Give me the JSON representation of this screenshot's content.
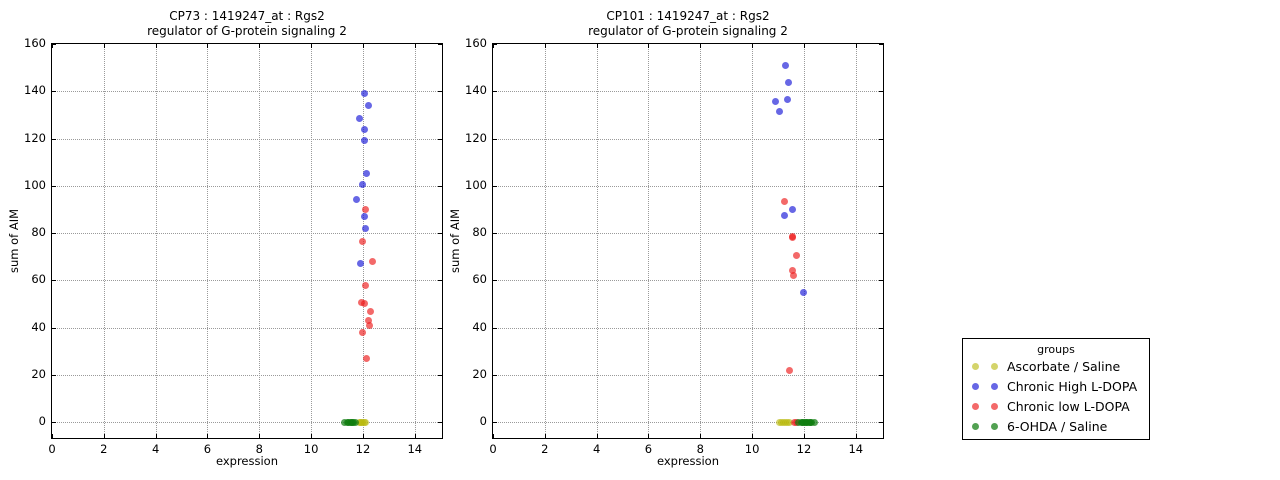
{
  "colors": {
    "ascorbate": "rgba(186,186,16,0.62)",
    "chronic_high": "rgba(25,25,215,0.66)",
    "chronic_low": "rgba(237,28,28,0.66)",
    "ohda": "rgba(15,125,15,0.72)",
    "grid": "#9a9a9a",
    "axis": "#000000"
  },
  "legend": {
    "title": "groups",
    "entries": [
      {
        "label": "Ascorbate / Saline",
        "group": "ascorbate"
      },
      {
        "label": "Chronic High L-DOPA",
        "group": "chronic_high"
      },
      {
        "label": "Chronic low L-DOPA",
        "group": "chronic_low"
      },
      {
        "label": "6-OHDA / Saline",
        "group": "ohda"
      }
    ]
  },
  "chart_data": [
    {
      "type": "scatter",
      "title_line1": "CP73 : 1419247_at : Rgs2",
      "title_line2": "regulator of G-protein signaling 2",
      "xlabel": "expression",
      "ylabel": "sum of AIM",
      "xlim": [
        0,
        15.05
      ],
      "ylim": [
        -6.7,
        160
      ],
      "xticks": [
        0,
        2,
        4,
        6,
        8,
        10,
        12,
        14
      ],
      "yticks": [
        0,
        20,
        40,
        60,
        80,
        100,
        120,
        140,
        160
      ],
      "grid": true,
      "legend_position": "outside-right",
      "series": [
        {
          "name": "Ascorbate / Saline",
          "group": "ascorbate",
          "points": [
            [
              11.85,
              0
            ],
            [
              11.9,
              0
            ],
            [
              11.95,
              0
            ],
            [
              12.0,
              0
            ],
            [
              12.05,
              0
            ],
            [
              12.1,
              0
            ]
          ]
        },
        {
          "name": "Chronic High L-DOPA",
          "group": "chronic_high",
          "points": [
            [
              12.05,
              139
            ],
            [
              12.2,
              134
            ],
            [
              11.85,
              128.5
            ],
            [
              12.05,
              124
            ],
            [
              12.05,
              119
            ],
            [
              12.15,
              105
            ],
            [
              12.0,
              100.5
            ],
            [
              11.75,
              94
            ],
            [
              12.05,
              87
            ],
            [
              12.1,
              82
            ],
            [
              11.9,
              67
            ]
          ]
        },
        {
          "name": "Chronic low L-DOPA",
          "group": "chronic_low",
          "points": [
            [
              12.1,
              90
            ],
            [
              12.0,
              76.5
            ],
            [
              12.35,
              68
            ],
            [
              12.1,
              58
            ],
            [
              11.95,
              50.5
            ],
            [
              12.05,
              50
            ],
            [
              12.3,
              47
            ],
            [
              12.2,
              43
            ],
            [
              12.25,
              41
            ],
            [
              12.0,
              38
            ],
            [
              12.15,
              27
            ]
          ]
        },
        {
          "name": "6-OHDA / Saline",
          "group": "ohda",
          "points": [
            [
              11.3,
              0
            ],
            [
              11.4,
              0
            ],
            [
              11.45,
              0
            ],
            [
              11.5,
              0
            ],
            [
              11.55,
              0
            ],
            [
              11.6,
              0
            ],
            [
              11.65,
              0
            ],
            [
              11.7,
              0
            ]
          ]
        }
      ]
    },
    {
      "type": "scatter",
      "title_line1": "CP101 : 1419247_at : Rgs2",
      "title_line2": "regulator of G-protein signaling 2",
      "xlabel": "expression",
      "ylabel": "sum of AIM",
      "xlim": [
        0,
        15.05
      ],
      "ylim": [
        -6.7,
        160
      ],
      "xticks": [
        0,
        2,
        4,
        6,
        8,
        10,
        12,
        14
      ],
      "yticks": [
        0,
        20,
        40,
        60,
        80,
        100,
        120,
        140,
        160
      ],
      "grid": true,
      "series": [
        {
          "name": "Ascorbate / Saline",
          "group": "ascorbate",
          "points": [
            [
              11.05,
              0
            ],
            [
              11.15,
              0
            ],
            [
              11.2,
              0
            ],
            [
              11.3,
              0
            ],
            [
              11.35,
              0
            ],
            [
              11.45,
              0
            ]
          ]
        },
        {
          "name": "Chronic High L-DOPA",
          "group": "chronic_high",
          "points": [
            [
              11.3,
              151
            ],
            [
              11.4,
              143.5
            ],
            [
              11.35,
              136.5
            ],
            [
              10.9,
              135.5
            ],
            [
              11.05,
              131.5
            ],
            [
              11.55,
              90
            ],
            [
              11.25,
              87.5
            ],
            [
              12.0,
              55
            ]
          ]
        },
        {
          "name": "Chronic low L-DOPA",
          "group": "chronic_low",
          "points": [
            [
              11.25,
              93.5
            ],
            [
              11.55,
              78.5
            ],
            [
              11.57,
              78
            ],
            [
              11.7,
              70.5
            ],
            [
              11.55,
              64
            ],
            [
              11.6,
              62
            ],
            [
              11.45,
              22
            ],
            [
              11.65,
              0
            ],
            [
              11.72,
              0
            ]
          ]
        },
        {
          "name": "6-OHDA / Saline",
          "group": "ohda",
          "points": [
            [
              11.8,
              0
            ],
            [
              11.9,
              0
            ],
            [
              11.95,
              0
            ],
            [
              12.0,
              0
            ],
            [
              12.05,
              0
            ],
            [
              12.1,
              0
            ],
            [
              12.15,
              0
            ],
            [
              12.2,
              0
            ],
            [
              12.25,
              0
            ],
            [
              12.3,
              0
            ],
            [
              12.4,
              0
            ]
          ]
        }
      ]
    }
  ]
}
